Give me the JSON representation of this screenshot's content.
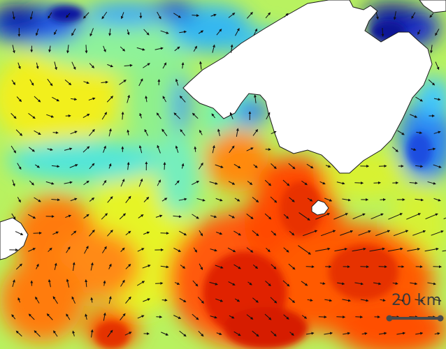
{
  "scale_bar": {
    "label": "20 km"
  },
  "colors": {
    "land": "#ffffff",
    "coastline": "#1a1a1a",
    "arrow": "#111111",
    "scale_bar": "#4a4a4a",
    "colormap": [
      "#08089a",
      "#1a3fe0",
      "#2a8ef5",
      "#3ee6ff",
      "#7ff7a8",
      "#e8f522",
      "#ffcc00",
      "#ff7a00",
      "#ff3c00",
      "#d61800"
    ]
  }
}
